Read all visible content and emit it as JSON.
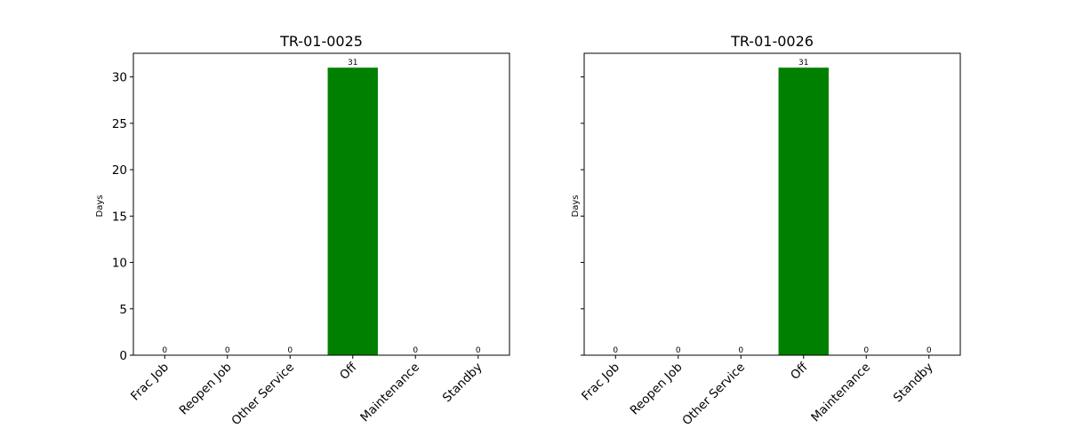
{
  "chart_data": [
    {
      "type": "bar",
      "title": "TR-01-0025",
      "ylabel": "Days",
      "xlabel": "",
      "categories": [
        "Frac Job",
        "Reopen Job",
        "Other Service",
        "Off",
        "Maintenance",
        "Standby"
      ],
      "values": [
        0,
        0,
        0,
        31,
        0,
        0
      ],
      "data_labels": [
        "0",
        "0",
        "0",
        "31",
        "0",
        "0"
      ],
      "ylim": [
        0,
        32.55
      ],
      "yticks": [
        0,
        5,
        10,
        15,
        20,
        25,
        30
      ],
      "show_ytick_labels": true,
      "bar_color": "#008000",
      "grid": false,
      "legend": "none"
    },
    {
      "type": "bar",
      "title": "TR-01-0026",
      "ylabel": "Days",
      "xlabel": "",
      "categories": [
        "Frac Job",
        "Reopen Job",
        "Other Service",
        "Off",
        "Maintenance",
        "Standby"
      ],
      "values": [
        0,
        0,
        0,
        31,
        0,
        0
      ],
      "data_labels": [
        "0",
        "0",
        "0",
        "31",
        "0",
        "0"
      ],
      "ylim": [
        0,
        32.55
      ],
      "yticks": [
        0,
        5,
        10,
        15,
        20,
        25,
        30
      ],
      "show_ytick_labels": false,
      "bar_color": "#008000",
      "grid": false,
      "legend": "none"
    }
  ]
}
